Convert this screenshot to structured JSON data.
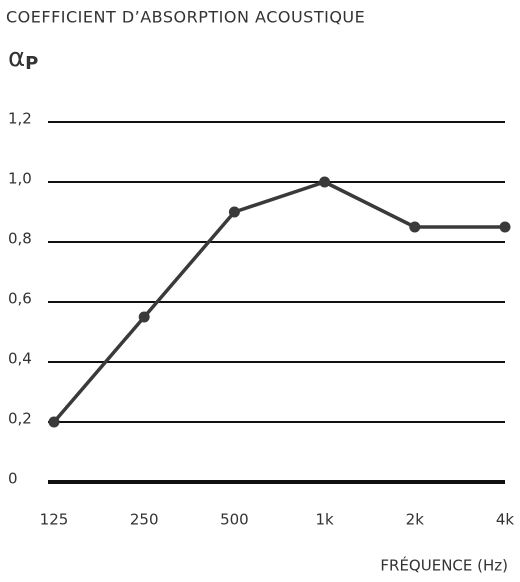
{
  "chart_data": {
    "type": "line",
    "title": "COEFFICIENT D’ABSORPTION ACOUSTIQUE",
    "ylabel": {
      "symbol": "α",
      "subscript": "P"
    },
    "xlabel": "FRÉQUENCE (Hz)",
    "categories": [
      "125",
      "250",
      "500",
      "1k",
      "2k",
      "4k"
    ],
    "values": [
      0.2,
      0.55,
      0.9,
      1.0,
      0.85,
      0.85
    ],
    "color": "#3a3a3a",
    "ylim": [
      0,
      1.2
    ],
    "yticks": [
      0,
      {
        "value": 0.2,
        "label": "0,2"
      },
      {
        "value": 0.4,
        "label": "0,4"
      },
      {
        "value": 0.6,
        "label": "0,6"
      },
      {
        "value": 0.8,
        "label": "0,8"
      },
      {
        "value": 1.0,
        "label": "1,0"
      },
      {
        "value": 1.2,
        "label": "1,2"
      }
    ],
    "grid": true
  }
}
